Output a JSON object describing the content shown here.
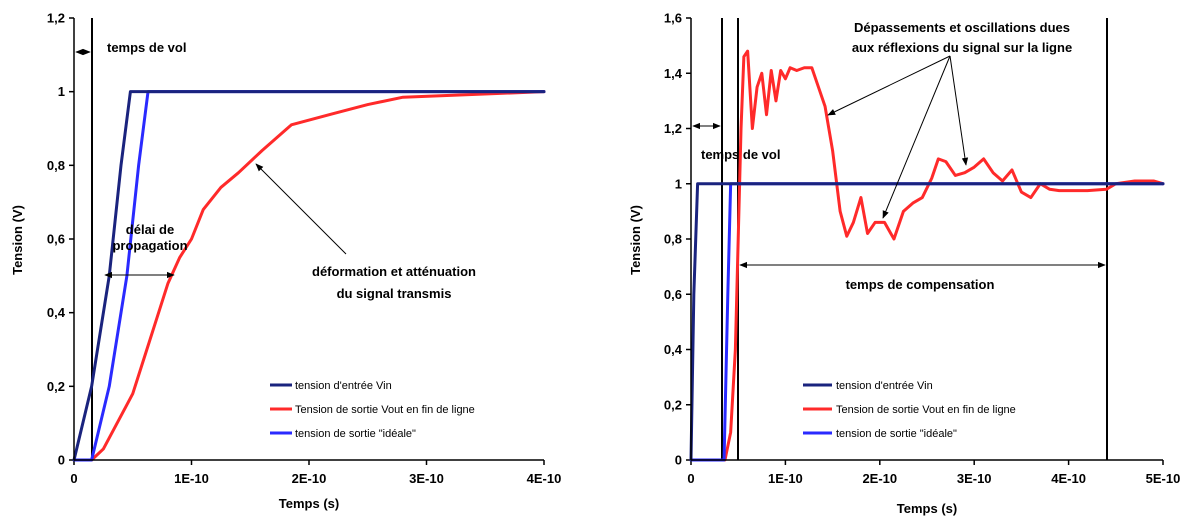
{
  "chart_data": [
    {
      "type": "line",
      "title": "",
      "xlabel": "Temps (s)",
      "ylabel": "Tension (V)",
      "xlim": [
        0,
        4e-10
      ],
      "ylim": [
        0,
        1.2
      ],
      "x_ticks": [
        "0",
        "1E-10",
        "2E-10",
        "3E-10",
        "4E-10"
      ],
      "y_ticks": [
        "0",
        "0,2",
        "0,4",
        "0,6",
        "0,8",
        "1",
        "1,2"
      ],
      "grid": false,
      "legend_position": "bottom-center",
      "series": [
        {
          "name": "tension d'entrée Vin",
          "color": "#1a237e",
          "points": [
            [
              0,
              0
            ],
            [
              1.5e-11,
              0.2
            ],
            [
              3e-11,
              0.5
            ],
            [
              4e-11,
              0.8
            ],
            [
              4.8e-11,
              1.0
            ],
            [
              4e-10,
              1.0
            ]
          ]
        },
        {
          "name": "Tension de sortie Vout en fin de ligne",
          "color": "#ff2a2a",
          "points": [
            [
              0,
              0
            ],
            [
              1.5e-11,
              0
            ],
            [
              2.5e-11,
              0.03
            ],
            [
              4e-11,
              0.12
            ],
            [
              5e-11,
              0.18
            ],
            [
              6e-11,
              0.28
            ],
            [
              7e-11,
              0.38
            ],
            [
              8e-11,
              0.48
            ],
            [
              9e-11,
              0.55
            ],
            [
              1e-10,
              0.6
            ],
            [
              1.1e-10,
              0.68
            ],
            [
              1.25e-10,
              0.74
            ],
            [
              1.4e-10,
              0.78
            ],
            [
              1.6e-10,
              0.84
            ],
            [
              1.85e-10,
              0.91
            ],
            [
              2.2e-10,
              0.94
            ],
            [
              2.5e-10,
              0.965
            ],
            [
              2.8e-10,
              0.985
            ],
            [
              3.2e-10,
              0.99
            ],
            [
              3.6e-10,
              0.995
            ],
            [
              4e-10,
              1.0
            ]
          ]
        },
        {
          "name": "tension de sortie \"idéale\"",
          "color": "#2a2aff",
          "points": [
            [
              0,
              0
            ],
            [
              1.5e-11,
              0
            ],
            [
              3e-11,
              0.2
            ],
            [
              4.5e-11,
              0.5
            ],
            [
              5.5e-11,
              0.8
            ],
            [
              6.3e-11,
              1.0
            ],
            [
              4e-10,
              1.0
            ]
          ]
        }
      ],
      "annotations": [
        {
          "text": "temps de vol"
        },
        {
          "lines": [
            "délai de",
            "propagation"
          ]
        },
        {
          "lines": [
            "déformation et atténuation",
            "du signal transmis"
          ]
        }
      ]
    },
    {
      "type": "line",
      "title": "",
      "xlabel": "Temps (s)",
      "ylabel": "Tension (V)",
      "xlim": [
        0,
        5e-10
      ],
      "ylim": [
        0,
        1.6
      ],
      "x_ticks": [
        "0",
        "1E-10",
        "2E-10",
        "3E-10",
        "4E-10",
        "5E-10"
      ],
      "y_ticks": [
        "0",
        "0,2",
        "0,4",
        "0,6",
        "0,8",
        "1",
        "1,2",
        "1,4",
        "1,6"
      ],
      "grid": false,
      "legend_position": "bottom-center",
      "series": [
        {
          "name": "tension d'entrée Vin",
          "color": "#1a237e",
          "points": [
            [
              0,
              0
            ],
            [
              3e-12,
              0.6
            ],
            [
              7e-12,
              1.0
            ],
            [
              5e-10,
              1.0
            ]
          ]
        },
        {
          "name": "Tension de sortie Vout en fin de ligne",
          "color": "#ff2a2a",
          "points": [
            [
              0,
              0
            ],
            [
              3.6e-11,
              0
            ],
            [
              4.2e-11,
              0.1
            ],
            [
              4.7e-11,
              0.4
            ],
            [
              5e-11,
              0.8
            ],
            [
              5.3e-11,
              1.2
            ],
            [
              5.6e-11,
              1.46
            ],
            [
              6e-11,
              1.48
            ],
            [
              6.5e-11,
              1.2
            ],
            [
              7e-11,
              1.35
            ],
            [
              7.5e-11,
              1.4
            ],
            [
              8e-11,
              1.25
            ],
            [
              8.5e-11,
              1.41
            ],
            [
              9e-11,
              1.3
            ],
            [
              9.5e-11,
              1.41
            ],
            [
              1e-10,
              1.38
            ],
            [
              1.05e-10,
              1.42
            ],
            [
              1.12e-10,
              1.41
            ],
            [
              1.2e-10,
              1.42
            ],
            [
              1.28e-10,
              1.42
            ],
            [
              1.35e-10,
              1.35
            ],
            [
              1.42e-10,
              1.28
            ],
            [
              1.5e-10,
              1.12
            ],
            [
              1.58e-10,
              0.9
            ],
            [
              1.65e-10,
              0.81
            ],
            [
              1.72e-10,
              0.86
            ],
            [
              1.8e-10,
              0.95
            ],
            [
              1.87e-10,
              0.82
            ],
            [
              1.95e-10,
              0.86
            ],
            [
              2.05e-10,
              0.86
            ],
            [
              2.15e-10,
              0.8
            ],
            [
              2.25e-10,
              0.9
            ],
            [
              2.35e-10,
              0.93
            ],
            [
              2.45e-10,
              0.95
            ],
            [
              2.55e-10,
              1.02
            ],
            [
              2.62e-10,
              1.09
            ],
            [
              2.7e-10,
              1.08
            ],
            [
              2.8e-10,
              1.03
            ],
            [
              2.9e-10,
              1.04
            ],
            [
              3e-10,
              1.06
            ],
            [
              3.1e-10,
              1.09
            ],
            [
              3.2e-10,
              1.04
            ],
            [
              3.3e-10,
              1.01
            ],
            [
              3.4e-10,
              1.05
            ],
            [
              3.5e-10,
              0.97
            ],
            [
              3.6e-10,
              0.95
            ],
            [
              3.7e-10,
              1.0
            ],
            [
              3.8e-10,
              0.98
            ],
            [
              3.9e-10,
              0.975
            ],
            [
              4e-10,
              0.975
            ],
            [
              4.2e-10,
              0.975
            ],
            [
              4.4e-10,
              0.98
            ],
            [
              4.5e-10,
              1.0
            ],
            [
              4.7e-10,
              1.01
            ],
            [
              4.9e-10,
              1.01
            ],
            [
              5e-10,
              1.0
            ]
          ]
        },
        {
          "name": "tension de sortie \"idéale\"",
          "color": "#2a2aff",
          "points": [
            [
              0,
              0
            ],
            [
              3.5e-11,
              0
            ],
            [
              3.9e-11,
              0.6
            ],
            [
              4.2e-11,
              1.0
            ],
            [
              5e-10,
              1.0
            ]
          ]
        }
      ],
      "annotations": [
        {
          "text": "temps de vol"
        },
        {
          "lines": [
            "Dépassements et oscillations dues",
            "aux réflexions du signal sur la ligne"
          ]
        },
        {
          "text": "temps de compensation"
        }
      ]
    }
  ]
}
